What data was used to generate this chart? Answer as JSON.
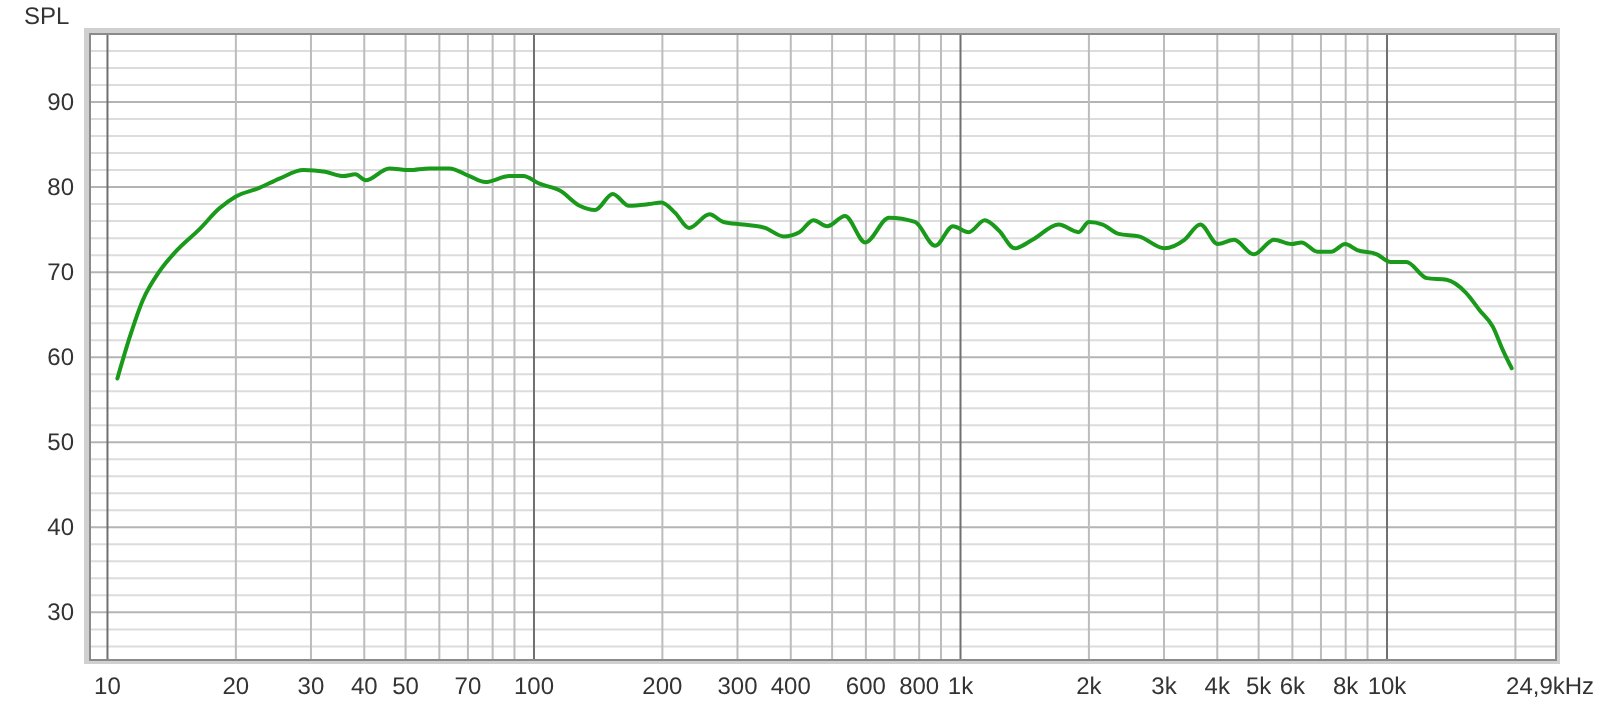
{
  "chart_data": {
    "type": "line",
    "ylabel": "SPL",
    "log": "x",
    "grid": true,
    "marker": "none",
    "line_style": "solid",
    "xlim": [
      9.1,
      24900
    ],
    "ylim": [
      24.4,
      98
    ],
    "xticks": [
      10,
      20,
      30,
      40,
      50,
      {
        "value": 60,
        "label": null
      },
      70,
      {
        "value": 80,
        "label": null
      },
      {
        "value": 90,
        "label": null
      },
      100,
      200,
      300,
      400,
      {
        "value": 500,
        "label": null
      },
      600,
      {
        "value": 700,
        "label": null
      },
      800,
      {
        "value": 900,
        "label": null
      },
      {
        "value": 1000,
        "label": "1k"
      },
      {
        "value": 2000,
        "label": "2k"
      },
      {
        "value": 3000,
        "label": "3k"
      },
      {
        "value": 4000,
        "label": "4k"
      },
      {
        "value": 5000,
        "label": "5k"
      },
      {
        "value": 6000,
        "label": "6k"
      },
      {
        "value": 7000,
        "label": null
      },
      {
        "value": 8000,
        "label": "8k"
      },
      {
        "value": 9000,
        "label": null
      },
      {
        "value": 10000,
        "label": "10k"
      },
      {
        "value": 20000,
        "label": null
      },
      {
        "value": 24900,
        "label": "24,9k"
      }
    ],
    "xlabel": "Hz",
    "yticks": [
      {
        "value": 26,
        "label": null
      },
      {
        "value": 28,
        "label": null
      },
      30,
      {
        "value": 32,
        "label": null
      },
      {
        "value": 34,
        "label": null
      },
      {
        "value": 36,
        "label": null
      },
      {
        "value": 38,
        "label": null
      },
      40,
      {
        "value": 42,
        "label": null
      },
      {
        "value": 44,
        "label": null
      },
      {
        "value": 46,
        "label": null
      },
      {
        "value": 48,
        "label": null
      },
      50,
      {
        "value": 52,
        "label": null
      },
      {
        "value": 54,
        "label": null
      },
      {
        "value": 56,
        "label": null
      },
      {
        "value": 58,
        "label": null
      },
      60,
      {
        "value": 62,
        "label": null
      },
      {
        "value": 64,
        "label": null
      },
      {
        "value": 66,
        "label": null
      },
      {
        "value": 68,
        "label": null
      },
      70,
      {
        "value": 72,
        "label": null
      },
      {
        "value": 74,
        "label": null
      },
      {
        "value": 76,
        "label": null
      },
      {
        "value": 78,
        "label": null
      },
      80,
      {
        "value": 82,
        "label": null
      },
      {
        "value": 84,
        "label": null
      },
      {
        "value": 86,
        "label": null
      },
      {
        "value": 88,
        "label": null
      },
      90,
      {
        "value": 92,
        "label": null
      },
      {
        "value": 94,
        "label": null
      },
      {
        "value": 96,
        "label": null
      }
    ],
    "series": [
      {
        "color": "#1a9a1a",
        "x": [
          10.55,
          11.3,
          12.1,
          13.2,
          14.7,
          16.4,
          18.3,
          20,
          22.7,
          25.3,
          28.8,
          32.4,
          35.7,
          38.1,
          40.3,
          45.8,
          51,
          56.8,
          63.3,
          70.6,
          76.9,
          87.6,
          94.4,
          103,
          115,
          128,
          139,
          153,
          167,
          186,
          199,
          214,
          231,
          258,
          278,
          309,
          348,
          385,
          419,
          452,
          487,
          536,
          598,
          680,
          782,
          872,
          960,
          1045,
          1140,
          1230,
          1340,
          1475,
          1700,
          1890,
          2000,
          2155,
          2350,
          2620,
          3010,
          3350,
          3650,
          4010,
          4380,
          4870,
          5430,
          5970,
          6300,
          6870,
          7400,
          7980,
          8510,
          9470,
          10200,
          11100,
          12400,
          13800,
          15300,
          16500,
          17700,
          18700,
          19600
        ],
        "values": [
          57.5,
          62.5,
          66.7,
          70,
          72.8,
          75,
          77.5,
          78.9,
          79.9,
          81,
          82,
          81.8,
          81.3,
          81.5,
          80.8,
          82.2,
          82,
          82.2,
          82.2,
          81.3,
          80.6,
          81.3,
          81.3,
          80.4,
          79.6,
          77.8,
          77.3,
          79.2,
          77.8,
          78,
          78.2,
          77,
          75.2,
          76.8,
          75.9,
          75.6,
          75.2,
          74.2,
          74.7,
          76.1,
          75.4,
          76.6,
          73.5,
          76.4,
          75.9,
          73.1,
          75.4,
          74.7,
          76.1,
          74.9,
          72.8,
          73.8,
          75.6,
          74.7,
          75.9,
          75.6,
          74.5,
          74.2,
          72.8,
          73.8,
          75.6,
          73.3,
          73.8,
          72.1,
          73.8,
          73.3,
          73.5,
          72.4,
          72.4,
          73.3,
          72.6,
          72.1,
          71.2,
          71.2,
          69.3,
          69.1,
          67.6,
          65.5,
          63.6,
          60.8,
          58.7
        ]
      }
    ]
  }
}
